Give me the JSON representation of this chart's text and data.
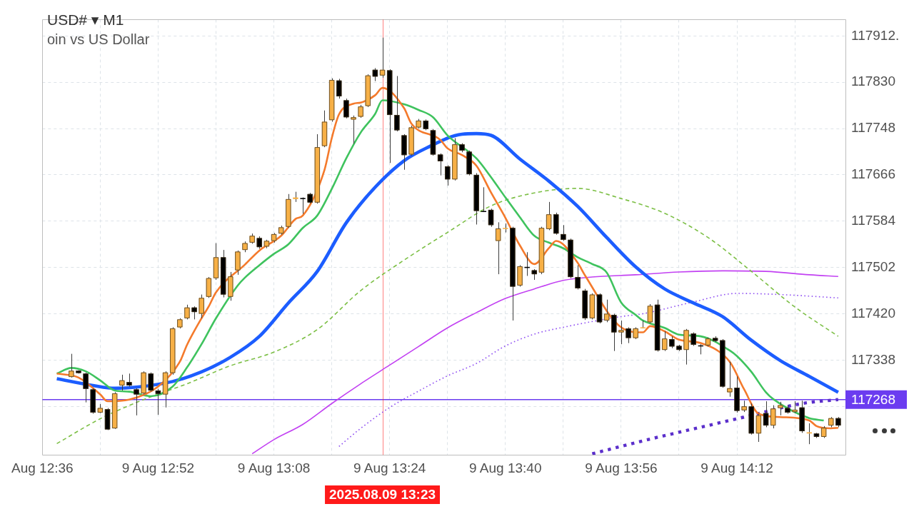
{
  "chart_data": {
    "type": "candlestick",
    "title": "USD# ▾ M1",
    "subtitle": "oin vs US Dollar",
    "x": [
      "2025-08-09T12:40",
      "2025-08-09T12:41",
      "2025-08-09T12:42",
      "2025-08-09T12:43",
      "2025-08-09T12:44",
      "2025-08-09T12:45",
      "2025-08-09T12:46",
      "2025-08-09T12:47",
      "2025-08-09T12:48",
      "2025-08-09T12:49",
      "2025-08-09T12:50",
      "2025-08-09T12:51",
      "2025-08-09T12:52",
      "2025-08-09T12:53",
      "2025-08-09T12:54",
      "2025-08-09T12:55",
      "2025-08-09T12:56",
      "2025-08-09T12:57",
      "2025-08-09T12:58",
      "2025-08-09T12:59",
      "2025-08-09T13:00",
      "2025-08-09T13:01",
      "2025-08-09T13:02",
      "2025-08-09T13:03",
      "2025-08-09T13:04",
      "2025-08-09T13:05",
      "2025-08-09T13:06",
      "2025-08-09T13:07",
      "2025-08-09T13:08",
      "2025-08-09T13:09",
      "2025-08-09T13:10",
      "2025-08-09T13:11",
      "2025-08-09T13:12",
      "2025-08-09T13:13",
      "2025-08-09T13:14",
      "2025-08-09T13:15",
      "2025-08-09T13:16",
      "2025-08-09T13:17",
      "2025-08-09T13:18",
      "2025-08-09T13:19",
      "2025-08-09T13:20",
      "2025-08-09T13:21",
      "2025-08-09T13:22",
      "2025-08-09T13:23",
      "2025-08-09T13:24",
      "2025-08-09T13:25",
      "2025-08-09T13:26",
      "2025-08-09T13:27",
      "2025-08-09T13:28",
      "2025-08-09T13:29",
      "2025-08-09T13:30",
      "2025-08-09T13:31",
      "2025-08-09T13:32",
      "2025-08-09T13:33",
      "2025-08-09T13:34",
      "2025-08-09T13:35",
      "2025-08-09T13:36",
      "2025-08-09T13:37",
      "2025-08-09T13:38",
      "2025-08-09T13:39",
      "2025-08-09T13:40",
      "2025-08-09T13:41",
      "2025-08-09T13:42",
      "2025-08-09T13:43",
      "2025-08-09T13:44",
      "2025-08-09T13:45",
      "2025-08-09T13:46",
      "2025-08-09T13:47",
      "2025-08-09T13:48",
      "2025-08-09T13:49",
      "2025-08-09T13:50",
      "2025-08-09T13:51",
      "2025-08-09T13:52",
      "2025-08-09T13:53",
      "2025-08-09T13:54",
      "2025-08-09T13:55",
      "2025-08-09T13:56",
      "2025-08-09T13:57",
      "2025-08-09T13:58",
      "2025-08-09T13:59",
      "2025-08-09T14:00",
      "2025-08-09T14:01",
      "2025-08-09T14:02",
      "2025-08-09T14:03",
      "2025-08-09T14:04",
      "2025-08-09T14:05",
      "2025-08-09T14:06",
      "2025-08-09T14:07",
      "2025-08-09T14:08",
      "2025-08-09T14:09",
      "2025-08-09T14:10",
      "2025-08-09T14:11",
      "2025-08-09T14:12",
      "2025-08-09T14:13",
      "2025-08-09T14:14",
      "2025-08-09T14:15",
      "2025-08-09T14:16",
      "2025-08-09T14:17",
      "2025-08-09T14:18",
      "2025-08-09T14:19",
      "2025-08-09T14:20",
      "2025-08-09T14:21",
      "2025-08-09T14:22",
      "2025-08-09T14:23",
      "2025-08-09T14:24",
      "2025-08-09T14:25",
      "2025-08-09T14:26"
    ],
    "ohlc": [
      [
        117308,
        117349,
        117307,
        117319
      ],
      [
        117319,
        117320,
        117314,
        117315
      ],
      [
        117314,
        117316,
        117263,
        117287
      ],
      [
        117286,
        117288,
        117243,
        117245
      ],
      [
        117245,
        117260,
        117244,
        117253
      ],
      [
        117251,
        117253,
        117214,
        117215
      ],
      [
        117217,
        117281,
        117216,
        117279
      ],
      [
        117293,
        117312,
        117284,
        117302
      ],
      [
        117299,
        117314,
        117291,
        117293
      ],
      [
        117286,
        117288,
        117240,
        117277
      ],
      [
        117279,
        117318,
        117277,
        117316
      ],
      [
        117314,
        117316,
        117282,
        117284
      ],
      [
        117284,
        117287,
        117241,
        117278
      ],
      [
        117277,
        117318,
        117254,
        117316
      ],
      [
        117315,
        117396,
        117312,
        117394
      ],
      [
        117396,
        117412,
        117394,
        117410
      ],
      [
        117412,
        117436,
        117410,
        117431
      ],
      [
        117431,
        117433,
        117410,
        117423
      ],
      [
        117420,
        117454,
        117412,
        117448
      ],
      [
        117450,
        117485,
        117448,
        117483
      ],
      [
        117483,
        117545,
        117480,
        117520
      ],
      [
        117520,
        117533,
        117449,
        117454
      ],
      [
        117450,
        117494,
        117443,
        117486
      ],
      [
        117497,
        117532,
        117489,
        117530
      ],
      [
        117533,
        117548,
        117529,
        117545
      ],
      [
        117546,
        117562,
        117544,
        117558
      ],
      [
        117554,
        117557,
        117535,
        117538
      ],
      [
        117539,
        117551,
        117536,
        117549
      ],
      [
        117549,
        117563,
        117546,
        117561
      ],
      [
        117562,
        117576,
        117560,
        117573
      ],
      [
        117574,
        117632,
        117572,
        117623
      ],
      [
        117623,
        117636,
        117618,
        117626
      ],
      [
        117625,
        117626,
        117597,
        117623
      ],
      [
        117632,
        117634,
        117615,
        117617
      ],
      [
        117617,
        117738,
        117615,
        117715
      ],
      [
        117717,
        117780,
        117715,
        117760
      ],
      [
        117763,
        117837,
        117760,
        117834
      ],
      [
        117833,
        117836,
        117801,
        117805
      ],
      [
        117798,
        117801,
        117766,
        117768
      ],
      [
        117764,
        117771,
        117721,
        117768
      ],
      [
        117769,
        117790,
        117767,
        117787
      ],
      [
        117788,
        117844,
        117786,
        117842
      ],
      [
        117852,
        117855,
        117832,
        117840
      ],
      [
        117842,
        117909,
        117838,
        117852
      ],
      [
        117851,
        117853,
        117687,
        117772
      ],
      [
        117772,
        117841,
        117743,
        117745
      ],
      [
        117736,
        117738,
        117675,
        117701
      ],
      [
        117702,
        117753,
        117700,
        117750
      ],
      [
        117750,
        117765,
        117748,
        117762
      ],
      [
        117762,
        117764,
        117745,
        117747
      ],
      [
        117745,
        117747,
        117700,
        117702
      ],
      [
        117702,
        117704,
        117665,
        117690
      ],
      [
        117681,
        117683,
        117647,
        117658
      ],
      [
        117658,
        117731,
        117656,
        117720
      ],
      [
        117720,
        117722,
        117706,
        117709
      ],
      [
        117707,
        117709,
        117665,
        117667
      ],
      [
        117666,
        117669,
        117578,
        117602
      ],
      [
        117602,
        117644,
        117600,
        117601
      ],
      [
        117604,
        117606,
        117574,
        117577
      ],
      [
        117549,
        117582,
        117490,
        117571
      ],
      [
        117570,
        117580,
        117564,
        117572
      ],
      [
        117572,
        117574,
        117408,
        117468
      ],
      [
        117470,
        117506,
        117468,
        117504
      ],
      [
        117503,
        117529,
        117487,
        117501
      ],
      [
        117497,
        117499,
        117480,
        117490
      ],
      [
        117493,
        117574,
        117490,
        117572
      ],
      [
        117570,
        117618,
        117568,
        117596
      ],
      [
        117596,
        117599,
        117560,
        117562
      ],
      [
        117561,
        117577,
        117549,
        117551
      ],
      [
        117551,
        117553,
        117483,
        117485
      ],
      [
        117485,
        117506,
        117463,
        117465
      ],
      [
        117461,
        117464,
        117409,
        117412
      ],
      [
        117412,
        117456,
        117410,
        117454
      ],
      [
        117454,
        117456,
        117403,
        117405
      ],
      [
        117408,
        117445,
        117405,
        117420
      ],
      [
        117418,
        117420,
        117354,
        117387
      ],
      [
        117387,
        117408,
        117366,
        117391
      ],
      [
        117394,
        117396,
        117368,
        117377
      ],
      [
        117377,
        117396,
        117375,
        117394
      ],
      [
        117395,
        117408,
        117394,
        117396
      ],
      [
        117405,
        117437,
        117403,
        117434
      ],
      [
        117436,
        117445,
        117353,
        117355
      ],
      [
        117356,
        117389,
        117354,
        117376
      ],
      [
        117375,
        117380,
        117359,
        117362
      ],
      [
        117363,
        117365,
        117354,
        117356
      ],
      [
        117356,
        117393,
        117330,
        117391
      ],
      [
        117385,
        117387,
        117363,
        117365
      ],
      [
        117364,
        117366,
        117348,
        117363
      ],
      [
        117364,
        117378,
        117362,
        117376
      ],
      [
        117377,
        117380,
        117370,
        117372
      ],
      [
        117373,
        117375,
        117289,
        117291
      ],
      [
        117281,
        117335,
        117273,
        117288
      ],
      [
        117289,
        117309,
        117245,
        117248
      ],
      [
        117249,
        117266,
        117246,
        117256
      ],
      [
        117256,
        117261,
        117206,
        117208
      ],
      [
        117208,
        117243,
        117193,
        117240
      ],
      [
        117244,
        117265,
        117219,
        117222
      ],
      [
        117222,
        117258,
        117217,
        117252
      ],
      [
        117253,
        117264,
        117240,
        117258
      ],
      [
        117253,
        117258,
        117243,
        117245
      ],
      [
        117246,
        117265,
        117244,
        117250
      ],
      [
        117254,
        117266,
        117209,
        117212
      ],
      [
        117208,
        117226,
        117189,
        117210
      ],
      [
        117208,
        117209,
        117200,
        117202
      ],
      [
        117202,
        117221,
        117200,
        117218
      ],
      [
        117222,
        117237,
        117219,
        117235
      ],
      [
        117235,
        117237,
        117219,
        117222
      ]
    ],
    "colors": [
      "#f7b046",
      "#000000",
      "#000000",
      "#000000",
      "#f7b046",
      "#000000",
      "#f7b046",
      "#f7b046",
      "#000000",
      "#000000",
      "#f7b046",
      "#000000",
      "#000000",
      "#f7b046",
      "#f7b046",
      "#f7b046",
      "#f7b046",
      "#000000",
      "#f7b046",
      "#f7b046",
      "#f7b046",
      "#000000",
      "#f7b046",
      "#f7b046",
      "#f7b046",
      "#f7b046",
      "#000000",
      "#f7b046",
      "#f7b046",
      "#f7b046",
      "#f7b046",
      "#f7b046",
      "#000000",
      "#000000",
      "#f7b046",
      "#f7b046",
      "#f7b046",
      "#000000",
      "#000000",
      "#f7b046",
      "#f7b046",
      "#f7b046",
      "#000000",
      "#f7b046",
      "#000000",
      "#000000",
      "#000000",
      "#f7b046",
      "#f7b046",
      "#000000",
      "#000000",
      "#000000",
      "#000000",
      "#f7b046",
      "#000000",
      "#000000",
      "#000000",
      "#000000",
      "#000000",
      "#f7b046",
      "#f7b046",
      "#000000",
      "#f7b046",
      "#000000",
      "#000000",
      "#f7b046",
      "#f7b046",
      "#000000",
      "#000000",
      "#000000",
      "#000000",
      "#000000",
      "#f7b046",
      "#000000",
      "#f7b046",
      "#000000",
      "#f7b046",
      "#000000",
      "#f7b046",
      "#f7b046",
      "#f7b046",
      "#000000",
      "#f7b046",
      "#000000",
      "#000000",
      "#f7b046",
      "#000000",
      "#000000",
      "#f7b046",
      "#000000",
      "#000000",
      "#f7b046",
      "#000000",
      "#f7b046",
      "#000000",
      "#f7b046",
      "#000000",
      "#f7b046",
      "#f7b046",
      "#000000",
      "#f7b046",
      "#000000",
      "#f7b046",
      "#000000",
      "#f7b046",
      "#f7b046",
      "#000000"
    ],
    "series": [
      {
        "type": "line",
        "color": "#f47a2c",
        "line_style": "solid",
        "x": [
          "2025-08-09T12:38",
          "2025-08-09T12:41",
          "2025-08-09T12:44",
          "2025-08-09T12:45",
          "2025-08-09T12:48",
          "2025-08-09T12:52",
          "2025-08-09T12:55",
          "2025-08-09T12:56",
          "2025-08-09T12:58",
          "2025-08-09T12:59",
          "2025-08-09T13:00",
          "2025-08-09T13:04",
          "2025-08-09T13:06",
          "2025-08-09T13:09",
          "2025-08-09T13:11",
          "2025-08-09T13:12",
          "2025-08-09T13:15",
          "2025-08-09T13:16",
          "2025-08-09T13:17",
          "2025-08-09T13:19",
          "2025-08-09T13:20",
          "2025-08-09T13:22",
          "2025-08-09T13:23",
          "2025-08-09T13:26",
          "2025-08-09T13:27",
          "2025-08-09T13:31",
          "2025-08-09T13:32",
          "2025-08-09T13:34",
          "2025-08-09T13:36",
          "2025-08-09T13:38",
          "2025-08-09T13:40",
          "2025-08-09T13:42",
          "2025-08-09T13:44",
          "2025-08-09T13:46",
          "2025-08-09T13:47",
          "2025-08-09T13:50",
          "2025-08-09T13:51",
          "2025-08-09T13:56",
          "2025-08-09T13:59",
          "2025-08-09T14:00",
          "2025-08-09T14:02",
          "2025-08-09T14:04",
          "2025-08-09T14:07",
          "2025-08-09T14:11",
          "2025-08-09T14:13",
          "2025-08-09T14:15",
          "2025-08-09T14:18",
          "2025-08-09T14:22",
          "2025-08-09T14:23",
          "2025-08-09T14:25",
          "2025-08-09T14:26"
        ],
        "values": [
          117314,
          117307,
          117277,
          117265,
          117268,
          117291,
          117335,
          117365,
          117412,
          117433,
          117458,
          117507,
          117532,
          117558,
          117588,
          117594,
          117675,
          117731,
          117773,
          117792,
          117794,
          117807,
          117820,
          117784,
          117757,
          117728,
          117713,
          117701,
          117682,
          117635,
          117590,
          117541,
          117508,
          117536,
          117549,
          117510,
          117488,
          117396,
          117387,
          117398,
          117389,
          117374,
          117368,
          117335,
          117286,
          117243,
          117237,
          117231,
          117221,
          117217,
          117218
        ]
      },
      {
        "type": "line",
        "color": "#3fc35e",
        "line_style": "solid",
        "x": [
          "2025-08-09T12:38",
          "2025-08-09T12:40",
          "2025-08-09T12:42",
          "2025-08-09T12:44",
          "2025-08-09T12:46",
          "2025-08-09T12:48",
          "2025-08-09T12:51",
          "2025-08-09T12:54",
          "2025-08-09T12:56",
          "2025-08-09T12:58",
          "2025-08-09T13:00",
          "2025-08-09T13:03",
          "2025-08-09T13:04",
          "2025-08-09T13:06",
          "2025-08-09T13:08",
          "2025-08-09T13:10",
          "2025-08-09T13:12",
          "2025-08-09T13:14",
          "2025-08-09T13:16",
          "2025-08-09T13:18",
          "2025-08-09T13:20",
          "2025-08-09T13:22",
          "2025-08-09T13:23",
          "2025-08-09T13:26",
          "2025-08-09T13:28",
          "2025-08-09T13:30",
          "2025-08-09T13:32",
          "2025-08-09T13:36",
          "2025-08-09T13:38",
          "2025-08-09T13:40",
          "2025-08-09T13:42",
          "2025-08-09T13:44",
          "2025-08-09T13:46",
          "2025-08-09T13:48",
          "2025-08-09T13:50",
          "2025-08-09T13:52",
          "2025-08-09T13:54",
          "2025-08-09T13:56",
          "2025-08-09T13:58",
          "2025-08-09T13:59",
          "2025-08-09T14:02",
          "2025-08-09T14:04",
          "2025-08-09T14:07",
          "2025-08-09T14:11",
          "2025-08-09T14:12",
          "2025-08-09T14:14",
          "2025-08-09T14:16",
          "2025-08-09T14:17",
          "2025-08-09T14:22",
          "2025-08-09T14:24"
        ],
        "values": [
          117314,
          117324,
          117318,
          117302,
          117284,
          117282,
          117274,
          117291,
          117325,
          117366,
          117412,
          117470,
          117484,
          117506,
          117526,
          117543,
          117572,
          117594,
          117641,
          117695,
          117741,
          117774,
          117798,
          117791,
          117781,
          117768,
          117736,
          117695,
          117662,
          117626,
          117591,
          117558,
          117546,
          117536,
          117520,
          117508,
          117493,
          117440,
          117418,
          117408,
          117395,
          117383,
          117380,
          117355,
          117345,
          117317,
          117281,
          117269,
          117235,
          117231
        ]
      },
      {
        "type": "line",
        "color": "#1c5dff",
        "line_style": "solid",
        "x": [
          "2025-08-09T12:38",
          "2025-08-09T12:43",
          "2025-08-09T12:46",
          "2025-08-09T12:49",
          "2025-08-09T12:54",
          "2025-08-09T12:58",
          "2025-08-09T13:02",
          "2025-08-09T13:06",
          "2025-08-09T13:10",
          "2025-08-09T13:14",
          "2025-08-09T13:18",
          "2025-08-09T13:22",
          "2025-08-09T13:26",
          "2025-08-09T13:29",
          "2025-08-09T13:34",
          "2025-08-09T13:36",
          "2025-08-09T13:38",
          "2025-08-09T13:42",
          "2025-08-09T13:46",
          "2025-08-09T13:50",
          "2025-08-09T13:54",
          "2025-08-09T13:58",
          "2025-08-09T14:02",
          "2025-08-09T14:06",
          "2025-08-09T14:10",
          "2025-08-09T14:14",
          "2025-08-09T14:18",
          "2025-08-09T14:22",
          "2025-08-09T14:26"
        ],
        "values": [
          117305,
          117293,
          117288,
          117290,
          117300,
          117317,
          117343,
          117380,
          117439,
          117495,
          117581,
          117644,
          117691,
          117713,
          117738,
          117739,
          117736,
          117694,
          117655,
          117610,
          117555,
          117503,
          117464,
          117439,
          117415,
          117373,
          117337,
          117309,
          117281
        ]
      },
      {
        "type": "line",
        "color": "#7cbf45",
        "line_style": "dashed",
        "x": [
          "2025-08-09T12:38",
          "2025-08-09T12:44",
          "2025-08-09T12:50",
          "2025-08-09T12:56",
          "2025-08-09T13:02",
          "2025-08-09T13:08",
          "2025-08-09T13:14",
          "2025-08-09T13:20",
          "2025-08-09T13:26",
          "2025-08-09T13:32",
          "2025-08-09T13:38",
          "2025-08-09T13:44",
          "2025-08-09T13:50",
          "2025-08-09T13:56",
          "2025-08-09T14:02",
          "2025-08-09T14:08",
          "2025-08-09T14:14",
          "2025-08-09T14:20",
          "2025-08-09T14:26"
        ],
        "values": [
          117190,
          117234,
          117268,
          117296,
          117328,
          117352,
          117392,
          117461,
          117515,
          117564,
          117611,
          117634,
          117642,
          117624,
          117598,
          117555,
          117495,
          117432,
          117380
        ]
      },
      {
        "type": "line",
        "color": "#c241f2",
        "line_style": "solid",
        "x": [
          "2025-08-09T13:05",
          "2025-08-09T13:08",
          "2025-08-09T13:12",
          "2025-08-09T13:16",
          "2025-08-09T13:20",
          "2025-08-09T13:24",
          "2025-08-09T13:28",
          "2025-08-09T13:32",
          "2025-08-09T13:36",
          "2025-08-09T13:40",
          "2025-08-09T13:44",
          "2025-08-09T13:48",
          "2025-08-09T13:52",
          "2025-08-09T13:58",
          "2025-08-09T14:04",
          "2025-08-09T14:10",
          "2025-08-09T14:16",
          "2025-08-09T14:22",
          "2025-08-09T14:26"
        ],
        "values": [
          117172,
          117197,
          117224,
          117261,
          117296,
          117329,
          117362,
          117395,
          117422,
          117447,
          117464,
          117479,
          117485,
          117489,
          117494,
          117496,
          117495,
          117489,
          117486
        ]
      },
      {
        "type": "line",
        "color": "#8f4ff2",
        "line_style": "dotted",
        "x": [
          "2025-08-09T13:17",
          "2025-08-09T13:20",
          "2025-08-09T13:24",
          "2025-08-09T13:28",
          "2025-08-09T13:32",
          "2025-08-09T13:36",
          "2025-08-09T13:40",
          "2025-08-09T13:44",
          "2025-08-09T13:48",
          "2025-08-09T13:56",
          "2025-08-09T13:59",
          "2025-08-09T14:06",
          "2025-08-09T14:12",
          "2025-08-09T14:18",
          "2025-08-09T14:26"
        ],
        "values": [
          117185,
          117217,
          117254,
          117283,
          117310,
          117332,
          117363,
          117384,
          117396,
          117415,
          117420,
          117441,
          117456,
          117454,
          117448
        ]
      },
      {
        "type": "line",
        "color": "#5b2fcb",
        "line_style": "dotted",
        "x": [
          "2025-08-09T13:52",
          "2025-08-09T14:00",
          "2025-08-09T14:08",
          "2025-08-09T14:13",
          "2025-08-09T14:21",
          "2025-08-09T14:26"
        ],
        "values": [
          117172,
          117198,
          117222,
          117237,
          117261,
          117268
        ]
      }
    ],
    "xlim": [
      "2025-08-09T12:36",
      "2025-08-09T14:27"
    ],
    "xticks": [
      {
        "value": "2025-08-09T12:36",
        "label": "Aug 12:36"
      },
      {
        "value": "2025-08-09T12:44",
        "label": null
      },
      {
        "value": "2025-08-09T12:52",
        "label": "9 Aug 12:52"
      },
      {
        "value": "2025-08-09T13:00",
        "label": null
      },
      {
        "value": "2025-08-09T13:08",
        "label": "9 Aug 13:08"
      },
      {
        "value": "2025-08-09T13:16",
        "label": null
      },
      {
        "value": "2025-08-09T13:24",
        "label": "9 Aug 13:24"
      },
      {
        "value": "2025-08-09T13:32",
        "label": null
      },
      {
        "value": "2025-08-09T13:40",
        "label": "9 Aug 13:40"
      },
      {
        "value": "2025-08-09T13:48",
        "label": null
      },
      {
        "value": "2025-08-09T13:56",
        "label": "9 Aug 13:56"
      },
      {
        "value": "2025-08-09T14:04",
        "label": null
      },
      {
        "value": "2025-08-09T14:12",
        "label": "9 Aug 14:12"
      },
      {
        "value": "2025-08-09T14:20",
        "label": null
      }
    ],
    "ylim": [
      117170,
      117941
    ],
    "yticks": [
      {
        "value": 117256,
        "label": null
      },
      117338,
      117420,
      117502,
      117584,
      117666,
      117748,
      117830,
      {
        "value": 117912,
        "label": "117912."
      }
    ],
    "grid": true,
    "marker": "none",
    "ref_lines": [
      {
        "axis": "y",
        "value": 117268,
        "label": "117268",
        "color": "#6b3cf0"
      },
      {
        "axis": "x",
        "value": "2025-08-09T13:23",
        "label": "2025.08.09 13:23",
        "color": "#ff1a1a"
      }
    ]
  }
}
